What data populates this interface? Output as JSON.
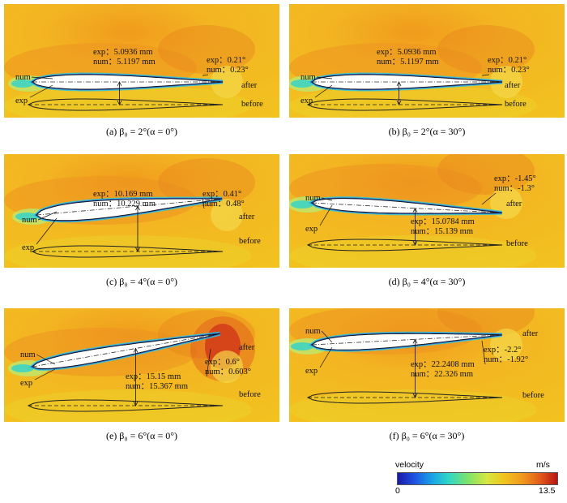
{
  "panels": [
    {
      "id": "a",
      "caption": "(a) β₀ = 2°(α = 0°)",
      "exp_thick": "exp：5.0936 mm",
      "num_thick": "num：5.1197 mm",
      "exp_angle": "exp：0.21°",
      "num_angle": "num：0.23°",
      "num_label": "num",
      "exp_label": "exp",
      "after_label": "after",
      "before_label": "before"
    },
    {
      "id": "b",
      "caption": "(b) β₀ = 2°(α = 30°)",
      "exp_thick": "exp：5.0936 mm",
      "num_thick": "num：5.1197 mm",
      "exp_angle": "exp：0.21°",
      "num_angle": "num：0.23°",
      "num_label": "num",
      "exp_label": "exp",
      "after_label": "after",
      "before_label": "before"
    },
    {
      "id": "c",
      "caption": "(c) β₀ = 4°(α = 0°)",
      "exp_thick": "exp：10.169 mm",
      "num_thick": "num：10.229 mm",
      "exp_angle": "exp：0.41°",
      "num_angle": "num：0.48°",
      "num_label": "num",
      "exp_label": "exp",
      "after_label": "after",
      "before_label": "before"
    },
    {
      "id": "d",
      "caption": "(d) β₀ = 4°(α = 30°)",
      "exp_thick": "exp：15.0784 mm",
      "num_thick": "num：15.139 mm",
      "exp_angle": "exp：-1.45°",
      "num_angle": "num：-1.3°",
      "num_label": "num",
      "exp_label": "exp",
      "after_label": "after",
      "before_label": "before"
    },
    {
      "id": "e",
      "caption": "(e) β₀ = 6°(α = 0°)",
      "exp_thick": "exp：15.15 mm",
      "num_thick": "num：15.367 mm",
      "exp_angle": "exp：0.6°",
      "num_angle": "num：0.603°",
      "num_label": "num",
      "exp_label": "exp",
      "after_label": "after",
      "before_label": "before"
    },
    {
      "id": "f",
      "caption": "(f) β₀ = 6°(α = 30°)",
      "exp_thick": "exp：22.2408 mm",
      "num_thick": "num：22.326 mm",
      "exp_angle": "exp：-2.2°",
      "num_angle": "num：-1.92°",
      "num_label": "num",
      "exp_label": "exp",
      "after_label": "after",
      "before_label": "before"
    }
  ],
  "colorbar": {
    "title": "velocity",
    "unit": "m/s",
    "min": "0",
    "max": "13.5"
  }
}
